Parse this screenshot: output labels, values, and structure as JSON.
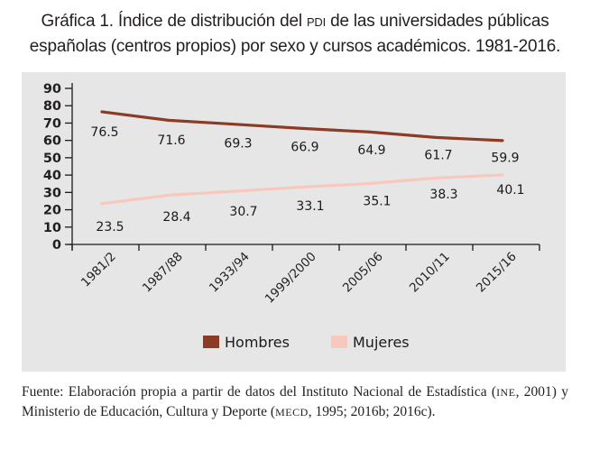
{
  "title": {
    "line1_pre": "Gráfica 1. Índice de distribución del ",
    "line1_abbr": "PDI",
    "line1_post": " de las universidades públicas",
    "line2": "españolas (centros propios) por sexo y cursos académicos. 1981-2016."
  },
  "source": {
    "part1": "Fuente: Elaboración propia a partir de datos del Instituto Nacional de Estadística (",
    "abbr1": "INE",
    "part2": ", 2001) y Ministerio de Educación, Cultura y Deporte (",
    "abbr2": "MECD",
    "part3": ", 1995; 2016b; 2016c)."
  },
  "chart_data": {
    "type": "line",
    "title": "Gráfica 1. Índice de distribución del PDI de las universidades públicas españolas (centros propios) por sexo y cursos académicos. 1981-2016.",
    "xlabel": "",
    "ylabel": "",
    "categories": [
      "1981/2",
      "1987/88",
      "1933/94",
      "1999/2000",
      "2005/06",
      "2010/11",
      "2015/16"
    ],
    "ylim": [
      0,
      90
    ],
    "yticks": [
      0,
      10,
      20,
      30,
      40,
      50,
      60,
      70,
      80,
      90
    ],
    "grid": false,
    "legend_position": "bottom",
    "series": [
      {
        "name": "Hombres",
        "color": "#8c3b26",
        "values": [
          76.5,
          71.6,
          69.3,
          66.9,
          64.9,
          61.7,
          59.9
        ]
      },
      {
        "name": "Mujeres",
        "color": "#f8c8bc",
        "values": [
          23.5,
          28.4,
          30.7,
          33.1,
          35.1,
          38.3,
          40.1
        ]
      }
    ],
    "data_labels": true
  }
}
